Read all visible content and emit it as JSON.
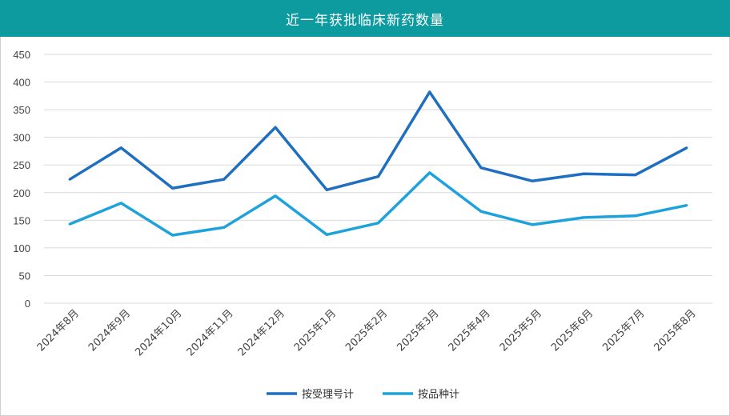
{
  "chart_data": {
    "type": "line",
    "title": "近一年获批临床新药数量",
    "categories": [
      "2024年8月",
      "2024年9月",
      "2024年10月",
      "2024年11月",
      "2024年12月",
      "2025年1月",
      "2025年2月",
      "2025年3月",
      "2025年4月",
      "2025年5月",
      "2025年6月",
      "2025年7月",
      "2025年8月"
    ],
    "series": [
      {
        "name": "按受理号计",
        "color": "#1f6fc0",
        "values": [
          224,
          281,
          208,
          224,
          318,
          205,
          229,
          382,
          245,
          221,
          234,
          232,
          281
        ]
      },
      {
        "name": "按品种计",
        "color": "#1ea2dc",
        "values": [
          143,
          181,
          123,
          137,
          194,
          124,
          145,
          236,
          166,
          142,
          155,
          158,
          177
        ]
      }
    ],
    "ylim": [
      0,
      450
    ],
    "yticks": [
      "0",
      "50",
      "100",
      "150",
      "200",
      "250",
      "300",
      "350",
      "400",
      "450"
    ],
    "grid": true,
    "legend_position": "bottom"
  }
}
